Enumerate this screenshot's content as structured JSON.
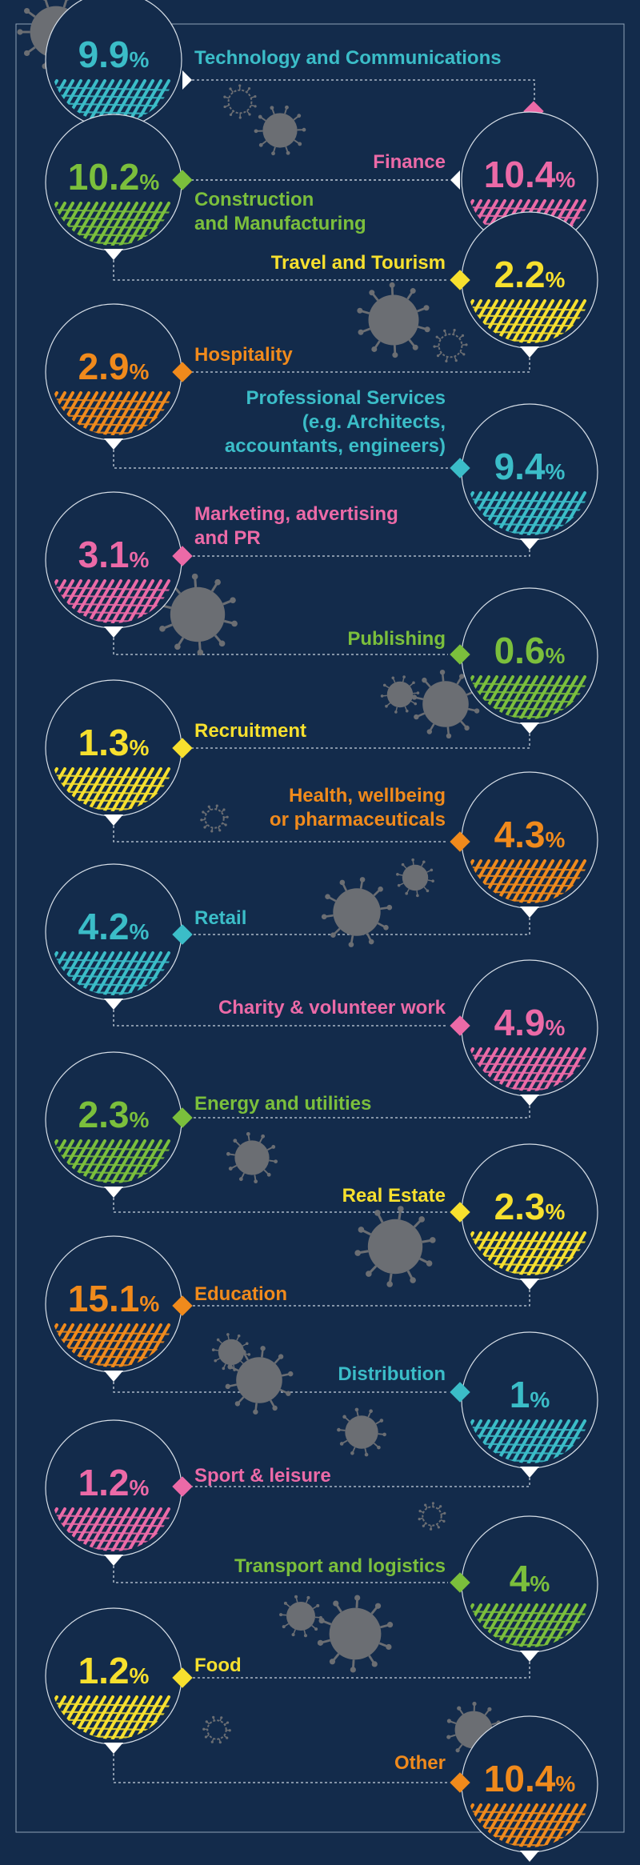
{
  "chart_data": {
    "type": "bar",
    "title": "",
    "unit": "%",
    "categories": [
      "Technology and Communications",
      "Finance",
      "Construction\nand Manufacturing",
      "Travel and Tourism",
      "Hospitality",
      "Professional Services\n(e.g. Architects,\naccountants, engineers)",
      "Marketing, advertising\nand PR",
      "Publishing",
      "Recruitment",
      "Health, wellbeing\nor pharmaceuticals",
      "Retail",
      "Charity & volunteer work",
      "Energy and utilities",
      "Real Estate",
      "Education",
      "Distribution",
      "Sport & leisure",
      "Transport and logistics",
      "Food",
      "Other"
    ],
    "values": [
      9.9,
      10.4,
      10.2,
      2.2,
      2.9,
      9.4,
      3.1,
      0.6,
      1.3,
      4.3,
      4.2,
      4.9,
      2.3,
      2.3,
      15.1,
      1,
      1.2,
      4,
      1.2,
      10.4
    ],
    "value_labels": [
      "9.9",
      "10.4",
      "10.2",
      "2.2",
      "2.9",
      "9.4",
      "3.1",
      "0.6",
      "1.3",
      "4.3",
      "4.2",
      "4.9",
      "2.3",
      "2.3",
      "15.1",
      "1",
      "1.2",
      "4",
      "1.2",
      "10.4"
    ],
    "sides": [
      "left",
      "right",
      "left",
      "right",
      "left",
      "right",
      "left",
      "right",
      "left",
      "right",
      "left",
      "right",
      "left",
      "right",
      "left",
      "right",
      "left",
      "right",
      "left",
      "right"
    ],
    "colors": [
      "#3bbdc8",
      "#ec6aa7",
      "#7bbf3c",
      "#f7e02e",
      "#f08a1c",
      "#3bbdc8",
      "#ec6aa7",
      "#7bbf3c",
      "#f7e02e",
      "#f08a1c",
      "#3bbdc8",
      "#ec6aa7",
      "#7bbf3c",
      "#f7e02e",
      "#f08a1c",
      "#3bbdc8",
      "#ec6aa7",
      "#7bbf3c",
      "#f7e02e",
      "#f08a1c"
    ],
    "virus_color": "#6b6e73",
    "line_color": "#c9d3de",
    "background": "#132b4b"
  }
}
